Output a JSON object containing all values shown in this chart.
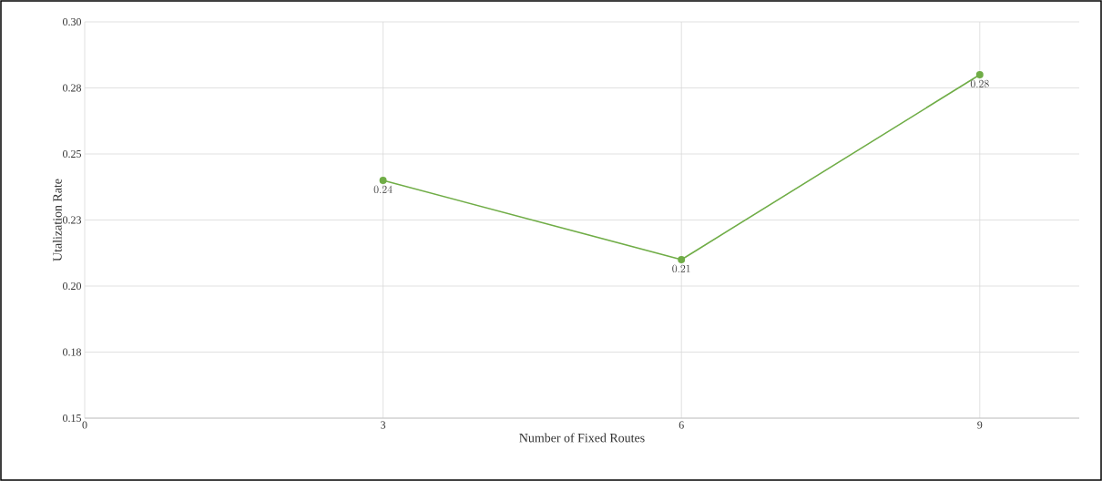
{
  "chart_data": {
    "type": "line",
    "xlabel": "Number of Fixed Routes",
    "ylabel": "Utalization Rate",
    "x": [
      3,
      6,
      9
    ],
    "series": [
      {
        "color": "#70ad47",
        "values": [
          0.24,
          0.21,
          0.28
        ]
      }
    ],
    "data_labels": true,
    "marker": "circle",
    "line_style": "solid",
    "grid": true,
    "legend": false,
    "xlim": [
      0,
      10
    ],
    "xticks": [
      0,
      3,
      6,
      9
    ],
    "ylim": [
      0.15,
      0.3
    ],
    "yticks": [
      {
        "value": 0.15,
        "label": "0.15"
      },
      {
        "value": 0.175,
        "label": "0.18"
      },
      {
        "value": 0.2,
        "label": "0.20"
      },
      {
        "value": 0.225,
        "label": "0.23"
      },
      {
        "value": 0.25,
        "label": "0.25"
      },
      {
        "value": 0.275,
        "label": "0.28"
      },
      {
        "value": 0.3,
        "label": "0.30"
      }
    ]
  }
}
